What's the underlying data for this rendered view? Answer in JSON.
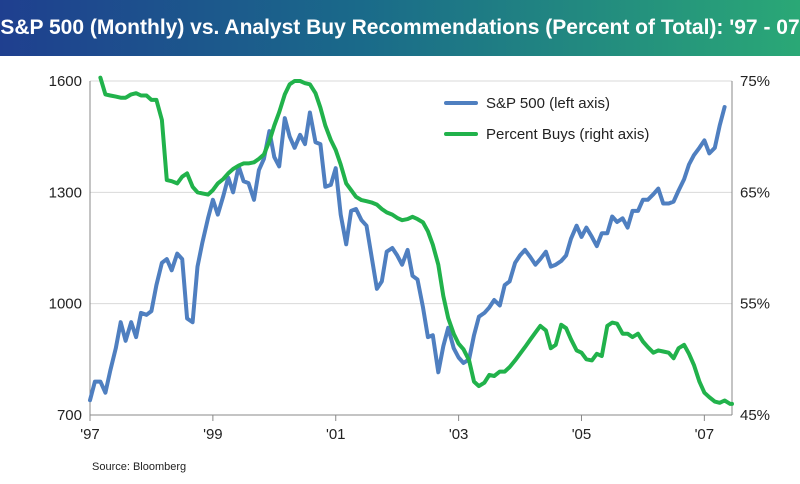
{
  "title": "S&P 500 (Monthly) vs. Analyst Buy Recommendations (Percent of Total): '97 - 07",
  "source": "Source: Bloomberg",
  "colors": {
    "title_bg_start": "#1f3f8f",
    "title_bg_end": "#2aa876",
    "sp500": "#4f7fc0",
    "buys": "#21b24b",
    "grid": "#d9d9d9"
  },
  "chart_data": {
    "type": "line",
    "grid": true,
    "legend_position": "top-right",
    "x_ticks": [
      "'97",
      "'99",
      "'01",
      "'03",
      "'05",
      "'07"
    ],
    "x_tick_values": [
      1997,
      1999,
      2001,
      2003,
      2005,
      2007
    ],
    "xlim": [
      1997,
      2007.45
    ],
    "left_axis": {
      "ylim": [
        700,
        1600
      ],
      "ticks": [
        "700",
        "1000",
        "1300",
        "1600"
      ],
      "tick_values": [
        700,
        1000,
        1300,
        1600
      ]
    },
    "right_axis": {
      "ylim": [
        45,
        75
      ],
      "ticks": [
        "45%",
        "55%",
        "65%",
        "75%"
      ],
      "tick_values": [
        45,
        55,
        65,
        75
      ]
    },
    "series": [
      {
        "name": "S&P 500 (left axis)",
        "axis": "left",
        "points": [
          [
            1997.0,
            740
          ],
          [
            1997.08,
            790
          ],
          [
            1997.17,
            790
          ],
          [
            1997.25,
            760
          ],
          [
            1997.33,
            820
          ],
          [
            1997.42,
            880
          ],
          [
            1997.5,
            950
          ],
          [
            1997.58,
            900
          ],
          [
            1997.67,
            950
          ],
          [
            1997.75,
            910
          ],
          [
            1997.83,
            975
          ],
          [
            1997.92,
            970
          ],
          [
            1998.0,
            980
          ],
          [
            1998.08,
            1050
          ],
          [
            1998.17,
            1110
          ],
          [
            1998.25,
            1120
          ],
          [
            1998.33,
            1090
          ],
          [
            1998.42,
            1135
          ],
          [
            1998.5,
            1120
          ],
          [
            1998.58,
            960
          ],
          [
            1998.67,
            950
          ],
          [
            1998.75,
            1100
          ],
          [
            1998.83,
            1165
          ],
          [
            1998.92,
            1230
          ],
          [
            1999.0,
            1280
          ],
          [
            1999.08,
            1240
          ],
          [
            1999.17,
            1290
          ],
          [
            1999.25,
            1340
          ],
          [
            1999.33,
            1300
          ],
          [
            1999.42,
            1370
          ],
          [
            1999.5,
            1330
          ],
          [
            1999.58,
            1325
          ],
          [
            1999.67,
            1280
          ],
          [
            1999.75,
            1360
          ],
          [
            1999.83,
            1390
          ],
          [
            1999.92,
            1465
          ],
          [
            2000.0,
            1395
          ],
          [
            2000.08,
            1370
          ],
          [
            2000.17,
            1500
          ],
          [
            2000.25,
            1450
          ],
          [
            2000.33,
            1420
          ],
          [
            2000.42,
            1455
          ],
          [
            2000.5,
            1430
          ],
          [
            2000.58,
            1515
          ],
          [
            2000.67,
            1435
          ],
          [
            2000.75,
            1430
          ],
          [
            2000.83,
            1315
          ],
          [
            2000.92,
            1320
          ],
          [
            2001.0,
            1365
          ],
          [
            2001.08,
            1240
          ],
          [
            2001.17,
            1160
          ],
          [
            2001.25,
            1250
          ],
          [
            2001.33,
            1255
          ],
          [
            2001.42,
            1225
          ],
          [
            2001.5,
            1210
          ],
          [
            2001.58,
            1130
          ],
          [
            2001.67,
            1040
          ],
          [
            2001.75,
            1060
          ],
          [
            2001.83,
            1140
          ],
          [
            2001.92,
            1150
          ],
          [
            2002.0,
            1130
          ],
          [
            2002.08,
            1105
          ],
          [
            2002.17,
            1145
          ],
          [
            2002.25,
            1075
          ],
          [
            2002.33,
            1065
          ],
          [
            2002.42,
            990
          ],
          [
            2002.5,
            910
          ],
          [
            2002.58,
            915
          ],
          [
            2002.67,
            815
          ],
          [
            2002.75,
            885
          ],
          [
            2002.83,
            935
          ],
          [
            2002.92,
            880
          ],
          [
            2003.0,
            855
          ],
          [
            2003.08,
            840
          ],
          [
            2003.17,
            850
          ],
          [
            2003.25,
            915
          ],
          [
            2003.33,
            965
          ],
          [
            2003.42,
            975
          ],
          [
            2003.5,
            990
          ],
          [
            2003.58,
            1010
          ],
          [
            2003.67,
            995
          ],
          [
            2003.75,
            1050
          ],
          [
            2003.83,
            1060
          ],
          [
            2003.92,
            1110
          ],
          [
            2004.0,
            1130
          ],
          [
            2004.08,
            1145
          ],
          [
            2004.17,
            1125
          ],
          [
            2004.25,
            1105
          ],
          [
            2004.33,
            1120
          ],
          [
            2004.42,
            1140
          ],
          [
            2004.5,
            1100
          ],
          [
            2004.58,
            1105
          ],
          [
            2004.67,
            1115
          ],
          [
            2004.75,
            1130
          ],
          [
            2004.83,
            1175
          ],
          [
            2004.92,
            1210
          ],
          [
            2005.0,
            1180
          ],
          [
            2005.08,
            1205
          ],
          [
            2005.17,
            1180
          ],
          [
            2005.25,
            1155
          ],
          [
            2005.33,
            1190
          ],
          [
            2005.42,
            1190
          ],
          [
            2005.5,
            1235
          ],
          [
            2005.58,
            1220
          ],
          [
            2005.67,
            1230
          ],
          [
            2005.75,
            1205
          ],
          [
            2005.83,
            1250
          ],
          [
            2005.92,
            1250
          ],
          [
            2006.0,
            1280
          ],
          [
            2006.08,
            1280
          ],
          [
            2006.17,
            1295
          ],
          [
            2006.25,
            1310
          ],
          [
            2006.33,
            1270
          ],
          [
            2006.42,
            1270
          ],
          [
            2006.5,
            1275
          ],
          [
            2006.58,
            1305
          ],
          [
            2006.67,
            1335
          ],
          [
            2006.75,
            1375
          ],
          [
            2006.83,
            1400
          ],
          [
            2006.92,
            1420
          ],
          [
            2007.0,
            1440
          ],
          [
            2007.08,
            1405
          ],
          [
            2007.17,
            1420
          ],
          [
            2007.25,
            1480
          ],
          [
            2007.33,
            1530
          ]
        ]
      },
      {
        "name": "Percent Buys (right axis)",
        "axis": "right",
        "points": [
          [
            1997.17,
            75.3
          ],
          [
            1997.25,
            73.8
          ],
          [
            1997.33,
            73.7
          ],
          [
            1997.42,
            73.6
          ],
          [
            1997.5,
            73.5
          ],
          [
            1997.58,
            73.5
          ],
          [
            1997.67,
            73.8
          ],
          [
            1997.75,
            73.9
          ],
          [
            1997.83,
            73.7
          ],
          [
            1997.92,
            73.7
          ],
          [
            1998.0,
            73.3
          ],
          [
            1998.08,
            73.3
          ],
          [
            1998.17,
            71.5
          ],
          [
            1998.25,
            66.1
          ],
          [
            1998.33,
            66.0
          ],
          [
            1998.42,
            65.8
          ],
          [
            1998.5,
            66.4
          ],
          [
            1998.58,
            66.7
          ],
          [
            1998.67,
            65.5
          ],
          [
            1998.75,
            65.0
          ],
          [
            1998.83,
            64.9
          ],
          [
            1998.92,
            64.8
          ],
          [
            1999.0,
            65.2
          ],
          [
            1999.08,
            65.8
          ],
          [
            1999.17,
            66.2
          ],
          [
            1999.25,
            66.7
          ],
          [
            1999.33,
            67.1
          ],
          [
            1999.42,
            67.4
          ],
          [
            1999.5,
            67.6
          ],
          [
            1999.58,
            67.6
          ],
          [
            1999.67,
            67.7
          ],
          [
            1999.75,
            68.0
          ],
          [
            1999.83,
            68.4
          ],
          [
            1999.92,
            69.6
          ],
          [
            2000.0,
            71.0
          ],
          [
            2000.08,
            72.2
          ],
          [
            2000.17,
            73.8
          ],
          [
            2000.25,
            74.7
          ],
          [
            2000.33,
            75.0
          ],
          [
            2000.42,
            75.0
          ],
          [
            2000.5,
            74.8
          ],
          [
            2000.58,
            74.7
          ],
          [
            2000.67,
            73.9
          ],
          [
            2000.75,
            72.6
          ],
          [
            2000.83,
            71.0
          ],
          [
            2000.92,
            69.7
          ],
          [
            2001.0,
            68.8
          ],
          [
            2001.08,
            67.5
          ],
          [
            2001.17,
            65.8
          ],
          [
            2001.25,
            65.2
          ],
          [
            2001.33,
            64.6
          ],
          [
            2001.42,
            64.3
          ],
          [
            2001.5,
            64.2
          ],
          [
            2001.58,
            64.1
          ],
          [
            2001.67,
            63.9
          ],
          [
            2001.75,
            63.5
          ],
          [
            2001.83,
            63.2
          ],
          [
            2001.92,
            63.0
          ],
          [
            2002.0,
            62.7
          ],
          [
            2002.08,
            62.5
          ],
          [
            2002.17,
            62.6
          ],
          [
            2002.25,
            62.8
          ],
          [
            2002.33,
            62.6
          ],
          [
            2002.42,
            62.3
          ],
          [
            2002.5,
            61.5
          ],
          [
            2002.58,
            60.3
          ],
          [
            2002.67,
            58.5
          ],
          [
            2002.75,
            55.7
          ],
          [
            2002.83,
            53.7
          ],
          [
            2002.92,
            52.3
          ],
          [
            2003.0,
            51.4
          ],
          [
            2003.08,
            50.9
          ],
          [
            2003.17,
            49.9
          ],
          [
            2003.25,
            48.0
          ],
          [
            2003.33,
            47.6
          ],
          [
            2003.42,
            47.9
          ],
          [
            2003.5,
            48.6
          ],
          [
            2003.58,
            48.5
          ],
          [
            2003.67,
            48.9
          ],
          [
            2003.75,
            48.9
          ],
          [
            2003.83,
            49.3
          ],
          [
            2003.92,
            49.9
          ],
          [
            2004.0,
            50.5
          ],
          [
            2004.08,
            51.1
          ],
          [
            2004.17,
            51.8
          ],
          [
            2004.25,
            52.4
          ],
          [
            2004.33,
            53.0
          ],
          [
            2004.42,
            52.6
          ],
          [
            2004.5,
            51.0
          ],
          [
            2004.58,
            51.3
          ],
          [
            2004.67,
            53.1
          ],
          [
            2004.75,
            52.8
          ],
          [
            2004.83,
            51.8
          ],
          [
            2004.92,
            50.8
          ],
          [
            2005.0,
            50.6
          ],
          [
            2005.08,
            50.0
          ],
          [
            2005.17,
            49.9
          ],
          [
            2005.25,
            50.5
          ],
          [
            2005.33,
            50.3
          ],
          [
            2005.42,
            53.0
          ],
          [
            2005.5,
            53.3
          ],
          [
            2005.58,
            53.2
          ],
          [
            2005.67,
            52.3
          ],
          [
            2005.75,
            52.3
          ],
          [
            2005.83,
            52.0
          ],
          [
            2005.92,
            52.3
          ],
          [
            2006.0,
            51.6
          ],
          [
            2006.08,
            51.1
          ],
          [
            2006.17,
            50.6
          ],
          [
            2006.25,
            50.8
          ],
          [
            2006.33,
            50.7
          ],
          [
            2006.42,
            50.6
          ],
          [
            2006.5,
            50.1
          ],
          [
            2006.58,
            51.0
          ],
          [
            2006.67,
            51.3
          ],
          [
            2006.75,
            50.5
          ],
          [
            2006.83,
            49.5
          ],
          [
            2006.92,
            48.0
          ],
          [
            2007.0,
            47.0
          ],
          [
            2007.08,
            46.6
          ],
          [
            2007.17,
            46.2
          ],
          [
            2007.25,
            46.1
          ],
          [
            2007.33,
            46.3
          ],
          [
            2007.42,
            46.0
          ],
          [
            2007.45,
            46.0
          ]
        ]
      }
    ]
  }
}
